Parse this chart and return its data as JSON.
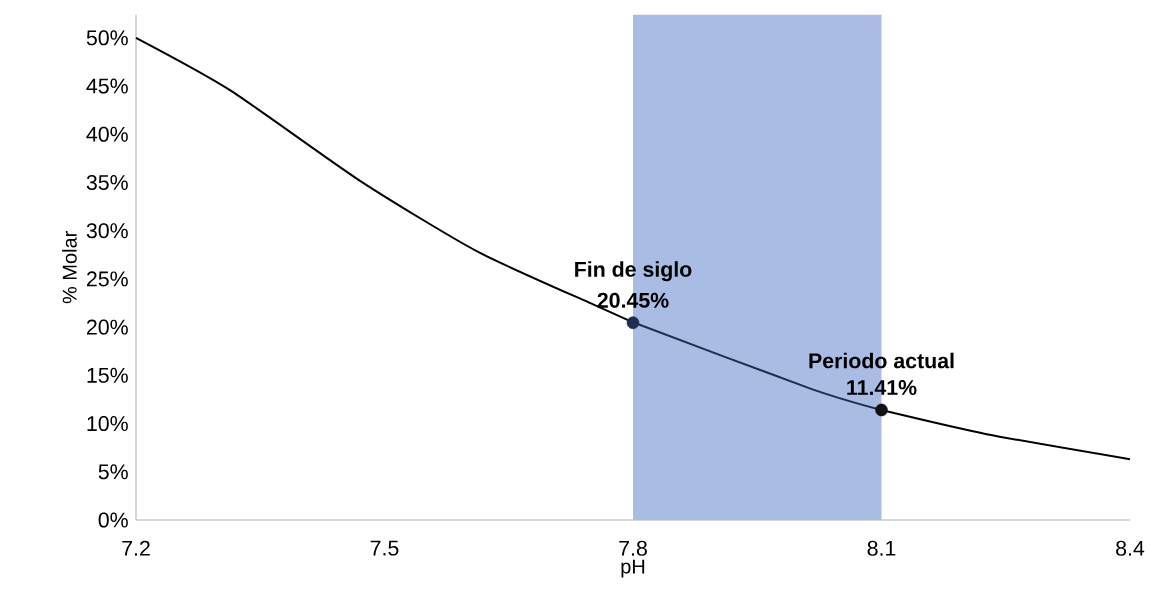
{
  "chart_data": {
    "type": "line",
    "xlabel": "pH",
    "ylabel": "% Molar",
    "xlim": [
      7.2,
      8.4
    ],
    "xticks": [
      7.2,
      7.5,
      7.8,
      8.1,
      8.4
    ],
    "ylim": [
      0,
      52.4
    ],
    "yticks": [
      {
        "value": 0,
        "label": "0%"
      },
      {
        "value": 5,
        "label": "5%"
      },
      {
        "value": 10,
        "label": "10%"
      },
      {
        "value": 15,
        "label": "15%"
      },
      {
        "value": 20,
        "label": "20%"
      },
      {
        "value": 25,
        "label": "25%"
      },
      {
        "value": 30,
        "label": "30%"
      },
      {
        "value": 35,
        "label": "35%"
      },
      {
        "value": 40,
        "label": "40%"
      },
      {
        "value": 45,
        "label": "45%"
      },
      {
        "value": 50,
        "label": "50%"
      }
    ],
    "grid": false,
    "bands": [
      {
        "axis": "x",
        "from": 7.8,
        "to": 8.1,
        "color": "#a9bce3"
      }
    ],
    "series": [
      {
        "color": "#000000",
        "marker": "none",
        "x": [
          7.2,
          7.313,
          7.47,
          7.613,
          7.756,
          7.8
        ],
        "values": [
          50,
          44.6,
          35.2,
          27.8,
          22.2,
          20.5
        ]
      },
      {
        "color": "#1f2d50",
        "marker": "none",
        "x": [
          7.8,
          8.015,
          8.1
        ],
        "values": [
          20.5,
          13.6,
          11.4
        ]
      },
      {
        "color": "#000000",
        "marker": "none",
        "x": [
          8.1,
          8.227,
          8.4
        ],
        "values": [
          11.4,
          8.9,
          6.3
        ]
      },
      {
        "type": "scatter",
        "colors": [
          "#1f2d50",
          "#111111"
        ],
        "marker": "circle",
        "x": [
          7.8,
          8.1
        ],
        "values": [
          20.45,
          11.41
        ],
        "value_labels": [
          "20.45%",
          "11.41%"
        ]
      }
    ],
    "annotations": [
      {
        "text": "Fin de siglo",
        "x": 7.8,
        "y": 20.45
      },
      {
        "text": "Periodo actual",
        "x": 8.1,
        "y": 11.41
      }
    ]
  }
}
